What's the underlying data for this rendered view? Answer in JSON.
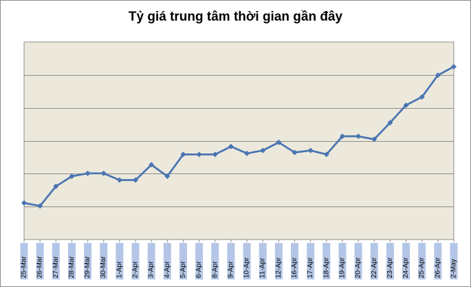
{
  "chart_data": {
    "type": "line",
    "title": "Tỷ giá trung tâm thời gian gần đây",
    "categories": [
      "25-Mar",
      "26-Mar",
      "27-Mar",
      "28-Mar",
      "29-Mar",
      "30-Mar",
      "1-Apr",
      "2-Apr",
      "3-Apr",
      "4-Apr",
      "5-Apr",
      "6-Apr",
      "8-Apr",
      "9-Apr",
      "10-Apr",
      "11-Apr",
      "12-Apr",
      "16-Apr",
      "17-Apr",
      "18-Apr",
      "19-Apr",
      "20-Apr",
      "22-Apr",
      "23-Apr",
      "24-Apr",
      "25-Apr",
      "26-Apr",
      "2-May"
    ],
    "series": [
      {
        "values": [
          2.22,
          2.04,
          3.23,
          3.84,
          4.02,
          4.02,
          3.61,
          3.61,
          4.54,
          3.84,
          5.17,
          5.17,
          5.17,
          5.65,
          5.23,
          5.41,
          5.9,
          5.29,
          5.41,
          5.17,
          6.27,
          6.27,
          6.09,
          7.1,
          8.16,
          8.66,
          9.98,
          10.5
        ],
        "color": "#4a74b2"
      }
    ],
    "ylim": [
      0,
      12
    ],
    "y_gridline_step": 2,
    "y_tick_labels_visible": false,
    "grid": true,
    "legend": "none",
    "plot_background": "#ece9dc",
    "category_label_background": "#b4c6e7",
    "xlabel": "",
    "ylabel": ""
  }
}
